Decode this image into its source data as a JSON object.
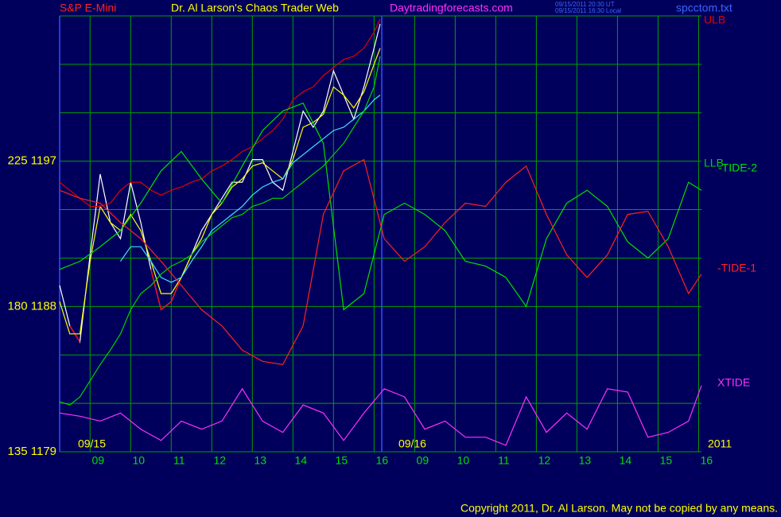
{
  "chart_data": {
    "type": "line",
    "title": "Dr. Al Larson's Chaos Trader Web",
    "instrument": "S&P E-Mini",
    "site": "Daytradingforecasts.com",
    "timestamp_ut": "09/15/2011 20:30 UT",
    "timestamp_local": "09/15/2011 16:30 Local",
    "file": "spcctom.txt",
    "date_labels": [
      {
        "value": 0.45,
        "label": "09/15"
      },
      {
        "value": 8.35,
        "label": "09/16"
      }
    ],
    "year_label": "2011",
    "copyright": "Copyright 2011, Dr. Al Larson. May not be copied by any means.",
    "xlim": [
      0,
      15.82
    ],
    "ylim": [
      1179,
      1206
    ],
    "xticks": [
      {
        "value": 0.75,
        "label": "09"
      },
      {
        "value": 1.75,
        "label": "10"
      },
      {
        "value": 2.75,
        "label": "11"
      },
      {
        "value": 3.75,
        "label": "12"
      },
      {
        "value": 4.75,
        "label": "13"
      },
      {
        "value": 5.75,
        "label": "14"
      },
      {
        "value": 6.75,
        "label": "15"
      },
      {
        "value": 7.75,
        "label": "16"
      },
      {
        "value": 8.75,
        "label": "09"
      },
      {
        "value": 9.75,
        "label": "10"
      },
      {
        "value": 10.75,
        "label": "11"
      },
      {
        "value": 11.75,
        "label": "12"
      },
      {
        "value": 12.75,
        "label": "13"
      },
      {
        "value": 13.75,
        "label": "14"
      },
      {
        "value": 14.75,
        "label": "15"
      },
      {
        "value": 15.75,
        "label": "16"
      }
    ],
    "yticks": [
      {
        "value": 1197,
        "label": "225  1197"
      },
      {
        "value": 1188,
        "label": "180  1188"
      },
      {
        "value": 1179,
        "label": "135  1179"
      }
    ],
    "y_gridlines": [
      1179,
      1182,
      1185,
      1188,
      1191,
      1194,
      1197,
      1200,
      1203,
      1206
    ],
    "day_divider": 7.94,
    "grid": true,
    "x": [
      0,
      0.5,
      1,
      1.5,
      2,
      2.5,
      3,
      3.5,
      4,
      4.5,
      5,
      5.5,
      6,
      6.5,
      7,
      7.5,
      8,
      8.5,
      9,
      9.5,
      10,
      10.5,
      11,
      11.5,
      12,
      12.5,
      13,
      13.5,
      14,
      14.5,
      15,
      15.5,
      15.82
    ],
    "series": [
      {
        "color": "#ffffff",
        "width": 2.2,
        "x": [
          0,
          0.25,
          0.5,
          0.75,
          1,
          1.25,
          1.5,
          1.75,
          2,
          2.25,
          2.5,
          2.75,
          3,
          3.25,
          3.5,
          3.75,
          4,
          4.25,
          4.5,
          4.75,
          5,
          5.25,
          5.5,
          5.75,
          6,
          6.25,
          6.5,
          6.75,
          7,
          7.25,
          7.5,
          7.75,
          7.9
        ],
        "values": [
          1189.3,
          1186.8,
          1185.8,
          1191.2,
          1196.2,
          1193.2,
          1192.2,
          1195.7,
          1193.2,
          1190.3,
          1187.8,
          1188.3,
          1189.8,
          1191.2,
          1192.7,
          1193.7,
          1194.7,
          1195.7,
          1195.7,
          1197.1,
          1197.1,
          1195.7,
          1195.2,
          1197.6,
          1200.1,
          1199.1,
          1200.1,
          1202.6,
          1201.1,
          1199.6,
          1201.6,
          1204.0,
          1205.5
        ]
      },
      {
        "color": "#ff0000",
        "width": 2.4,
        "x": [
          0,
          0.25,
          0.5,
          0.75,
          1,
          1.25,
          1.5,
          1.75,
          2,
          2.25,
          2.5,
          2.75,
          3,
          3.25,
          3.5,
          3.75,
          4,
          4.25,
          4.5,
          4.75,
          5,
          5.25,
          5.5,
          5.75,
          6,
          6.25,
          6.5,
          6.75,
          7,
          7.25,
          7.5,
          7.75,
          7.9
        ],
        "values": [
          null,
          1186.8,
          1185.8,
          null,
          null,
          null,
          null,
          null,
          null,
          1190.3,
          1187.8,
          1188.3,
          1189.8,
          null,
          null,
          null,
          null,
          null,
          null,
          null,
          null,
          null,
          null,
          null,
          null,
          null,
          null,
          null,
          null,
          null,
          null,
          null,
          null
        ]
      },
      {
        "color": "#ffff00",
        "width": 1.2,
        "x": [
          0,
          0.25,
          0.5,
          0.75,
          1,
          1.25,
          1.5,
          1.75,
          2,
          2.25,
          2.5,
          2.75,
          3,
          3.25,
          3.5,
          3.75,
          4,
          4.25,
          4.5,
          4.75,
          5,
          5.25,
          5.5,
          5.75,
          6,
          6.25,
          6.5,
          6.75,
          7,
          7.25,
          7.5,
          7.75,
          7.9
        ],
        "values": [
          1188.3,
          1186.3,
          1186.3,
          1190.8,
          1194.2,
          1193.2,
          1192.7,
          1193.7,
          1192.7,
          1190.8,
          1188.8,
          1188.8,
          1189.8,
          1191.2,
          1192.2,
          1193.7,
          1194.4,
          1195.4,
          1195.9,
          1196.7,
          1196.9,
          1196.4,
          1195.9,
          1197.1,
          1199.1,
          1199.4,
          1199.9,
          1201.6,
          1201.1,
          1200.3,
          1201.3,
          1203.0,
          1204.0
        ]
      },
      {
        "color": "#40e0ff",
        "width": 1,
        "x": [
          0,
          0.25,
          0.5,
          0.75,
          1,
          1.25,
          1.5,
          1.75,
          2,
          2.25,
          2.5,
          2.75,
          3,
          3.25,
          3.5,
          3.75,
          4,
          4.25,
          4.5,
          4.75,
          5,
          5.25,
          5.5,
          5.75,
          6,
          6.25,
          6.5,
          6.75,
          7,
          7.25,
          7.5,
          7.75,
          7.9
        ],
        "values": [
          null,
          null,
          null,
          null,
          null,
          null,
          1190.8,
          1191.7,
          1191.7,
          1190.8,
          1189.8,
          1189.5,
          1189.8,
          1190.8,
          1191.7,
          1192.7,
          1193.2,
          1193.7,
          1194.2,
          1194.9,
          1195.4,
          1195.7,
          1195.9,
          1196.9,
          1197.4,
          1197.9,
          1198.4,
          1198.9,
          1199.1,
          1199.6,
          1200.1,
          1200.8,
          1201.1
        ]
      },
      {
        "name": "ULB",
        "color": "#e00000",
        "width": 1,
        "x": [
          0,
          0.25,
          0.5,
          0.75,
          1,
          1.25,
          1.5,
          1.75,
          2,
          2.25,
          2.5,
          2.75,
          3,
          3.25,
          3.5,
          3.75,
          4,
          4.25,
          4.5,
          4.75,
          5,
          5.25,
          5.5,
          5.75,
          6,
          6.25,
          6.5,
          6.75,
          7,
          7.25,
          7.5,
          7.75,
          7.9
        ],
        "values": [
          1195.7,
          1195.2,
          1194.7,
          1194.2,
          1194.2,
          1194.4,
          1195.2,
          1195.7,
          1195.7,
          1195.2,
          1194.9,
          1195.2,
          1195.4,
          1195.7,
          1195.9,
          1196.4,
          1196.7,
          1197.1,
          1197.6,
          1197.9,
          1198.4,
          1198.9,
          1199.6,
          1200.8,
          1201.3,
          1201.6,
          1202.3,
          1202.8,
          1203.3,
          1203.5,
          1204.0,
          1205.0,
          1205.8
        ]
      },
      {
        "name": "LLB",
        "color": "#00d000",
        "width": 1,
        "x": [
          0,
          0.25,
          0.5,
          0.75,
          1,
          1.25,
          1.5,
          1.75,
          2,
          2.25,
          2.5,
          2.75,
          3,
          3.25,
          3.5,
          3.75,
          4,
          4.25,
          4.5,
          4.75,
          5,
          5.25,
          5.5,
          5.75,
          6,
          6.25,
          6.5,
          6.75,
          7,
          7.25,
          7.5,
          7.75,
          7.9
        ],
        "values": [
          1182.1,
          1181.9,
          1182.4,
          1183.4,
          1184.4,
          1185.3,
          1186.3,
          1187.8,
          1188.8,
          1189.3,
          1190.0,
          1190.5,
          1190.8,
          1191.2,
          1192.0,
          1192.5,
          1193.0,
          1193.5,
          1193.7,
          1194.2,
          1194.4,
          1194.7,
          1194.7,
          1195.2,
          1195.7,
          1196.2,
          1196.7,
          1197.4,
          1198.1,
          1199.1,
          1200.1,
          1201.6,
          1203.5
        ]
      },
      {
        "name": "-TIDE-2",
        "color": "#00e000",
        "width": 1,
        "values": [
          1190.3,
          1190.8,
          1191.7,
          1192.7,
          1194.4,
          1196.4,
          1197.6,
          1195.9,
          1194.4,
          1196.7,
          1198.9,
          1200.1,
          1200.6,
          1198.1,
          1187.8,
          1188.8,
          1193.7,
          1194.4,
          1193.7,
          1192.7,
          1190.8,
          1190.5,
          1189.8,
          1188.0,
          1192.2,
          1194.4,
          1195.2,
          1194.2,
          1192.0,
          1191.0,
          1192.2,
          1195.7,
          1195.2
        ]
      },
      {
        "name": "-TIDE-1",
        "color": "#ff2020",
        "width": 1,
        "values": [
          1195.2,
          1194.7,
          1194.4,
          1193.2,
          1192.2,
          1190.8,
          1189.3,
          1187.8,
          1186.8,
          1185.3,
          1184.6,
          1184.4,
          1186.8,
          1193.7,
          1196.4,
          1197.1,
          1192.2,
          1190.8,
          1191.7,
          1193.2,
          1194.4,
          1194.2,
          1195.7,
          1196.7,
          1193.7,
          1191.2,
          1189.8,
          1191.2,
          1193.7,
          1193.9,
          1191.7,
          1188.8,
          1190.0
        ]
      },
      {
        "name": "XTIDE",
        "color": "#ff30ff",
        "width": 1,
        "values": [
          1181.4,
          1181.2,
          1180.9,
          1181.4,
          1180.4,
          1179.7,
          1180.9,
          1180.4,
          1180.9,
          1182.9,
          1180.9,
          1180.2,
          1181.9,
          1181.4,
          1179.7,
          1181.4,
          1182.9,
          1182.4,
          1180.4,
          1180.9,
          1179.9,
          1179.9,
          1179.4,
          1182.4,
          1180.2,
          1181.4,
          1180.4,
          1182.9,
          1182.7,
          1179.9,
          1180.2,
          1180.9,
          1183.1
        ]
      }
    ]
  }
}
